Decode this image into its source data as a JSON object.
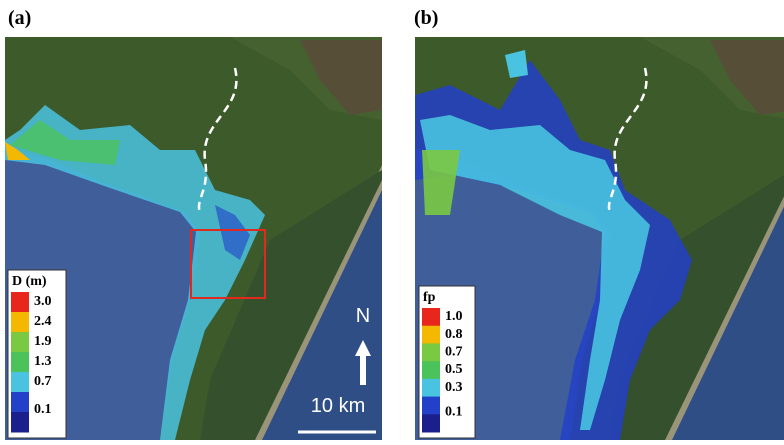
{
  "panels": [
    {
      "label": "(a)",
      "legend": {
        "title": "D (m)",
        "ticks": [
          "3.0",
          "2.4",
          "1.9",
          "1.3",
          "0.7",
          "0.1"
        ],
        "colors": [
          "#e8261c",
          "#f5b800",
          "#7ac943",
          "#4cc35a",
          "#49c3e0",
          "#2340c8",
          "#1a1f8c"
        ]
      }
    },
    {
      "label": "(b)",
      "legend": {
        "title": "fp",
        "ticks": [
          "1.0",
          "0.8",
          "0.7",
          "0.5",
          "0.3",
          "0.1"
        ],
        "colors": [
          "#e8261c",
          "#f5b800",
          "#7ac943",
          "#4cc35a",
          "#49c3e0",
          "#2340c8",
          "#1a1f8c"
        ]
      }
    }
  ],
  "north": "N",
  "scale": "10 km"
}
